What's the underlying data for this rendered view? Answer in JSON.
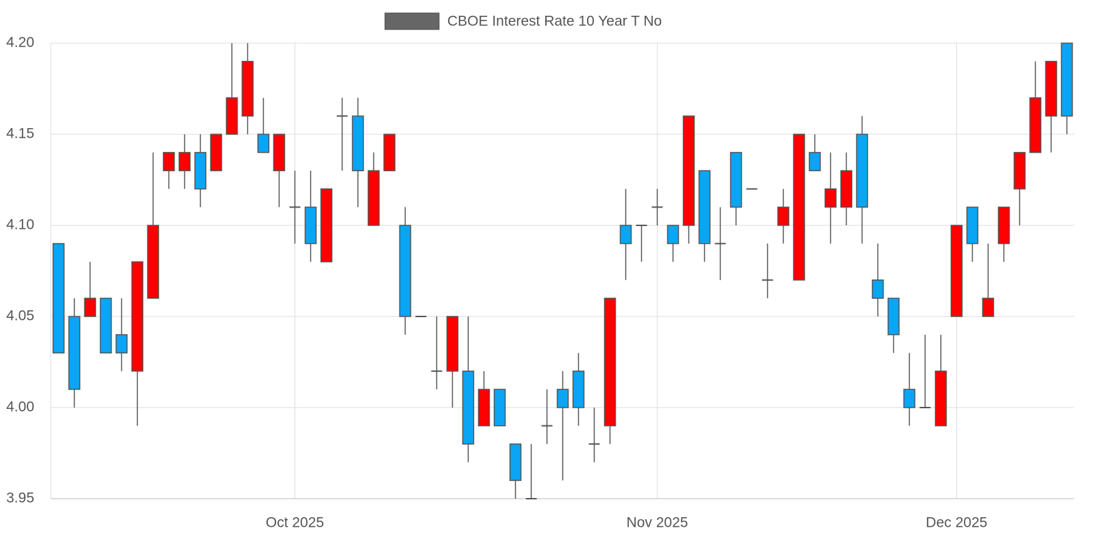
{
  "chart_data": {
    "type": "candlestick",
    "categories": [
      null,
      null,
      null,
      null,
      null,
      null,
      null,
      null,
      null,
      null,
      null,
      null,
      null,
      null,
      null,
      "Oct 2025",
      null,
      null,
      null,
      null,
      null,
      null,
      null,
      null,
      null,
      null,
      null,
      null,
      null,
      null,
      null,
      null,
      null,
      null,
      null,
      null,
      null,
      null,
      "Nov 2025",
      null,
      null,
      null,
      null,
      null,
      null,
      null,
      null,
      null,
      null,
      null,
      null,
      null,
      null,
      null,
      null,
      null,
      null,
      "Dec 2025",
      null,
      null,
      null,
      null,
      null,
      null,
      null
    ],
    "series": [
      {
        "name": "CBOE Interest Rate 10 Year T No",
        "color": "#666666",
        "increasing_color": "#ff0000",
        "decreasing_color": "#0aa5f5",
        "open": [
          4.09,
          4.05,
          4.05,
          4.06,
          4.04,
          4.02,
          4.06,
          4.13,
          4.13,
          4.14,
          4.13,
          4.15,
          4.16,
          4.15,
          4.13,
          4.11,
          4.11,
          4.08,
          4.16,
          4.16,
          4.1,
          4.13,
          4.1,
          4.05,
          4.02,
          4.02,
          4.02,
          3.99,
          4.01,
          3.98,
          3.95,
          3.99,
          4.01,
          4.02,
          3.98,
          3.99,
          4.1,
          4.1,
          4.11,
          4.1,
          4.1,
          4.13,
          4.09,
          4.14,
          4.12,
          4.07,
          4.1,
          4.07,
          4.14,
          4.11,
          4.11,
          4.15,
          4.07,
          4.06,
          4.01,
          4.0,
          3.99,
          4.05,
          4.11,
          4.05,
          4.09,
          4.12,
          4.14,
          4.16,
          4.2
        ],
        "high": [
          4.09,
          4.06,
          4.08,
          4.06,
          4.06,
          4.08,
          4.14,
          4.14,
          4.15,
          4.15,
          4.15,
          4.2,
          4.2,
          4.17,
          4.15,
          4.13,
          4.13,
          4.12,
          4.17,
          4.17,
          4.14,
          4.15,
          4.11,
          4.05,
          4.05,
          4.05,
          4.05,
          4.02,
          4.01,
          3.98,
          3.98,
          4.01,
          4.02,
          4.03,
          4.0,
          4.06,
          4.12,
          4.1,
          4.12,
          4.1,
          4.16,
          4.13,
          4.11,
          4.14,
          4.12,
          4.09,
          4.12,
          4.15,
          4.15,
          4.14,
          4.14,
          4.16,
          4.09,
          4.06,
          4.03,
          4.04,
          4.04,
          4.1,
          4.11,
          4.09,
          4.11,
          4.14,
          4.19,
          4.19,
          4.2
        ],
        "low": [
          4.03,
          4.0,
          4.05,
          4.03,
          4.02,
          3.99,
          4.06,
          4.12,
          4.12,
          4.11,
          4.13,
          4.15,
          4.15,
          4.14,
          4.11,
          4.09,
          4.08,
          4.08,
          4.13,
          4.11,
          4.1,
          4.13,
          4.04,
          4.05,
          4.01,
          4.0,
          3.97,
          3.99,
          3.99,
          3.95,
          3.95,
          3.98,
          3.96,
          3.99,
          3.97,
          3.98,
          4.07,
          4.08,
          4.1,
          4.08,
          4.09,
          4.08,
          4.07,
          4.1,
          4.12,
          4.06,
          4.09,
          4.07,
          4.13,
          4.09,
          4.1,
          4.09,
          4.05,
          4.03,
          3.99,
          4.0,
          3.99,
          4.05,
          4.08,
          4.05,
          4.08,
          4.1,
          4.14,
          4.14,
          4.15
        ],
        "close": [
          4.03,
          4.01,
          4.06,
          4.03,
          4.03,
          4.08,
          4.1,
          4.14,
          4.14,
          4.12,
          4.15,
          4.17,
          4.19,
          4.14,
          4.15,
          4.11,
          4.09,
          4.12,
          4.16,
          4.13,
          4.13,
          4.15,
          4.05,
          4.05,
          4.02,
          4.05,
          3.98,
          4.01,
          3.99,
          3.96,
          3.95,
          3.99,
          4.0,
          4.0,
          3.98,
          4.06,
          4.09,
          4.1,
          4.11,
          4.09,
          4.16,
          4.09,
          4.09,
          4.11,
          4.12,
          4.07,
          4.11,
          4.15,
          4.13,
          4.12,
          4.13,
          4.11,
          4.06,
          4.04,
          4.0,
          4.0,
          4.02,
          4.1,
          4.09,
          4.06,
          4.11,
          4.14,
          4.17,
          4.19,
          4.16
        ]
      }
    ],
    "ylim": [
      3.95,
      4.2
    ],
    "yticks": [
      {
        "value": 3.95,
        "label": "3.95"
      },
      {
        "value": 4.0,
        "label": "4.00"
      },
      4.05,
      {
        "value": 4.1,
        "label": "4.10"
      },
      4.15,
      {
        "value": 4.2,
        "label": "4.20"
      }
    ],
    "grid": true,
    "legend": "top"
  }
}
